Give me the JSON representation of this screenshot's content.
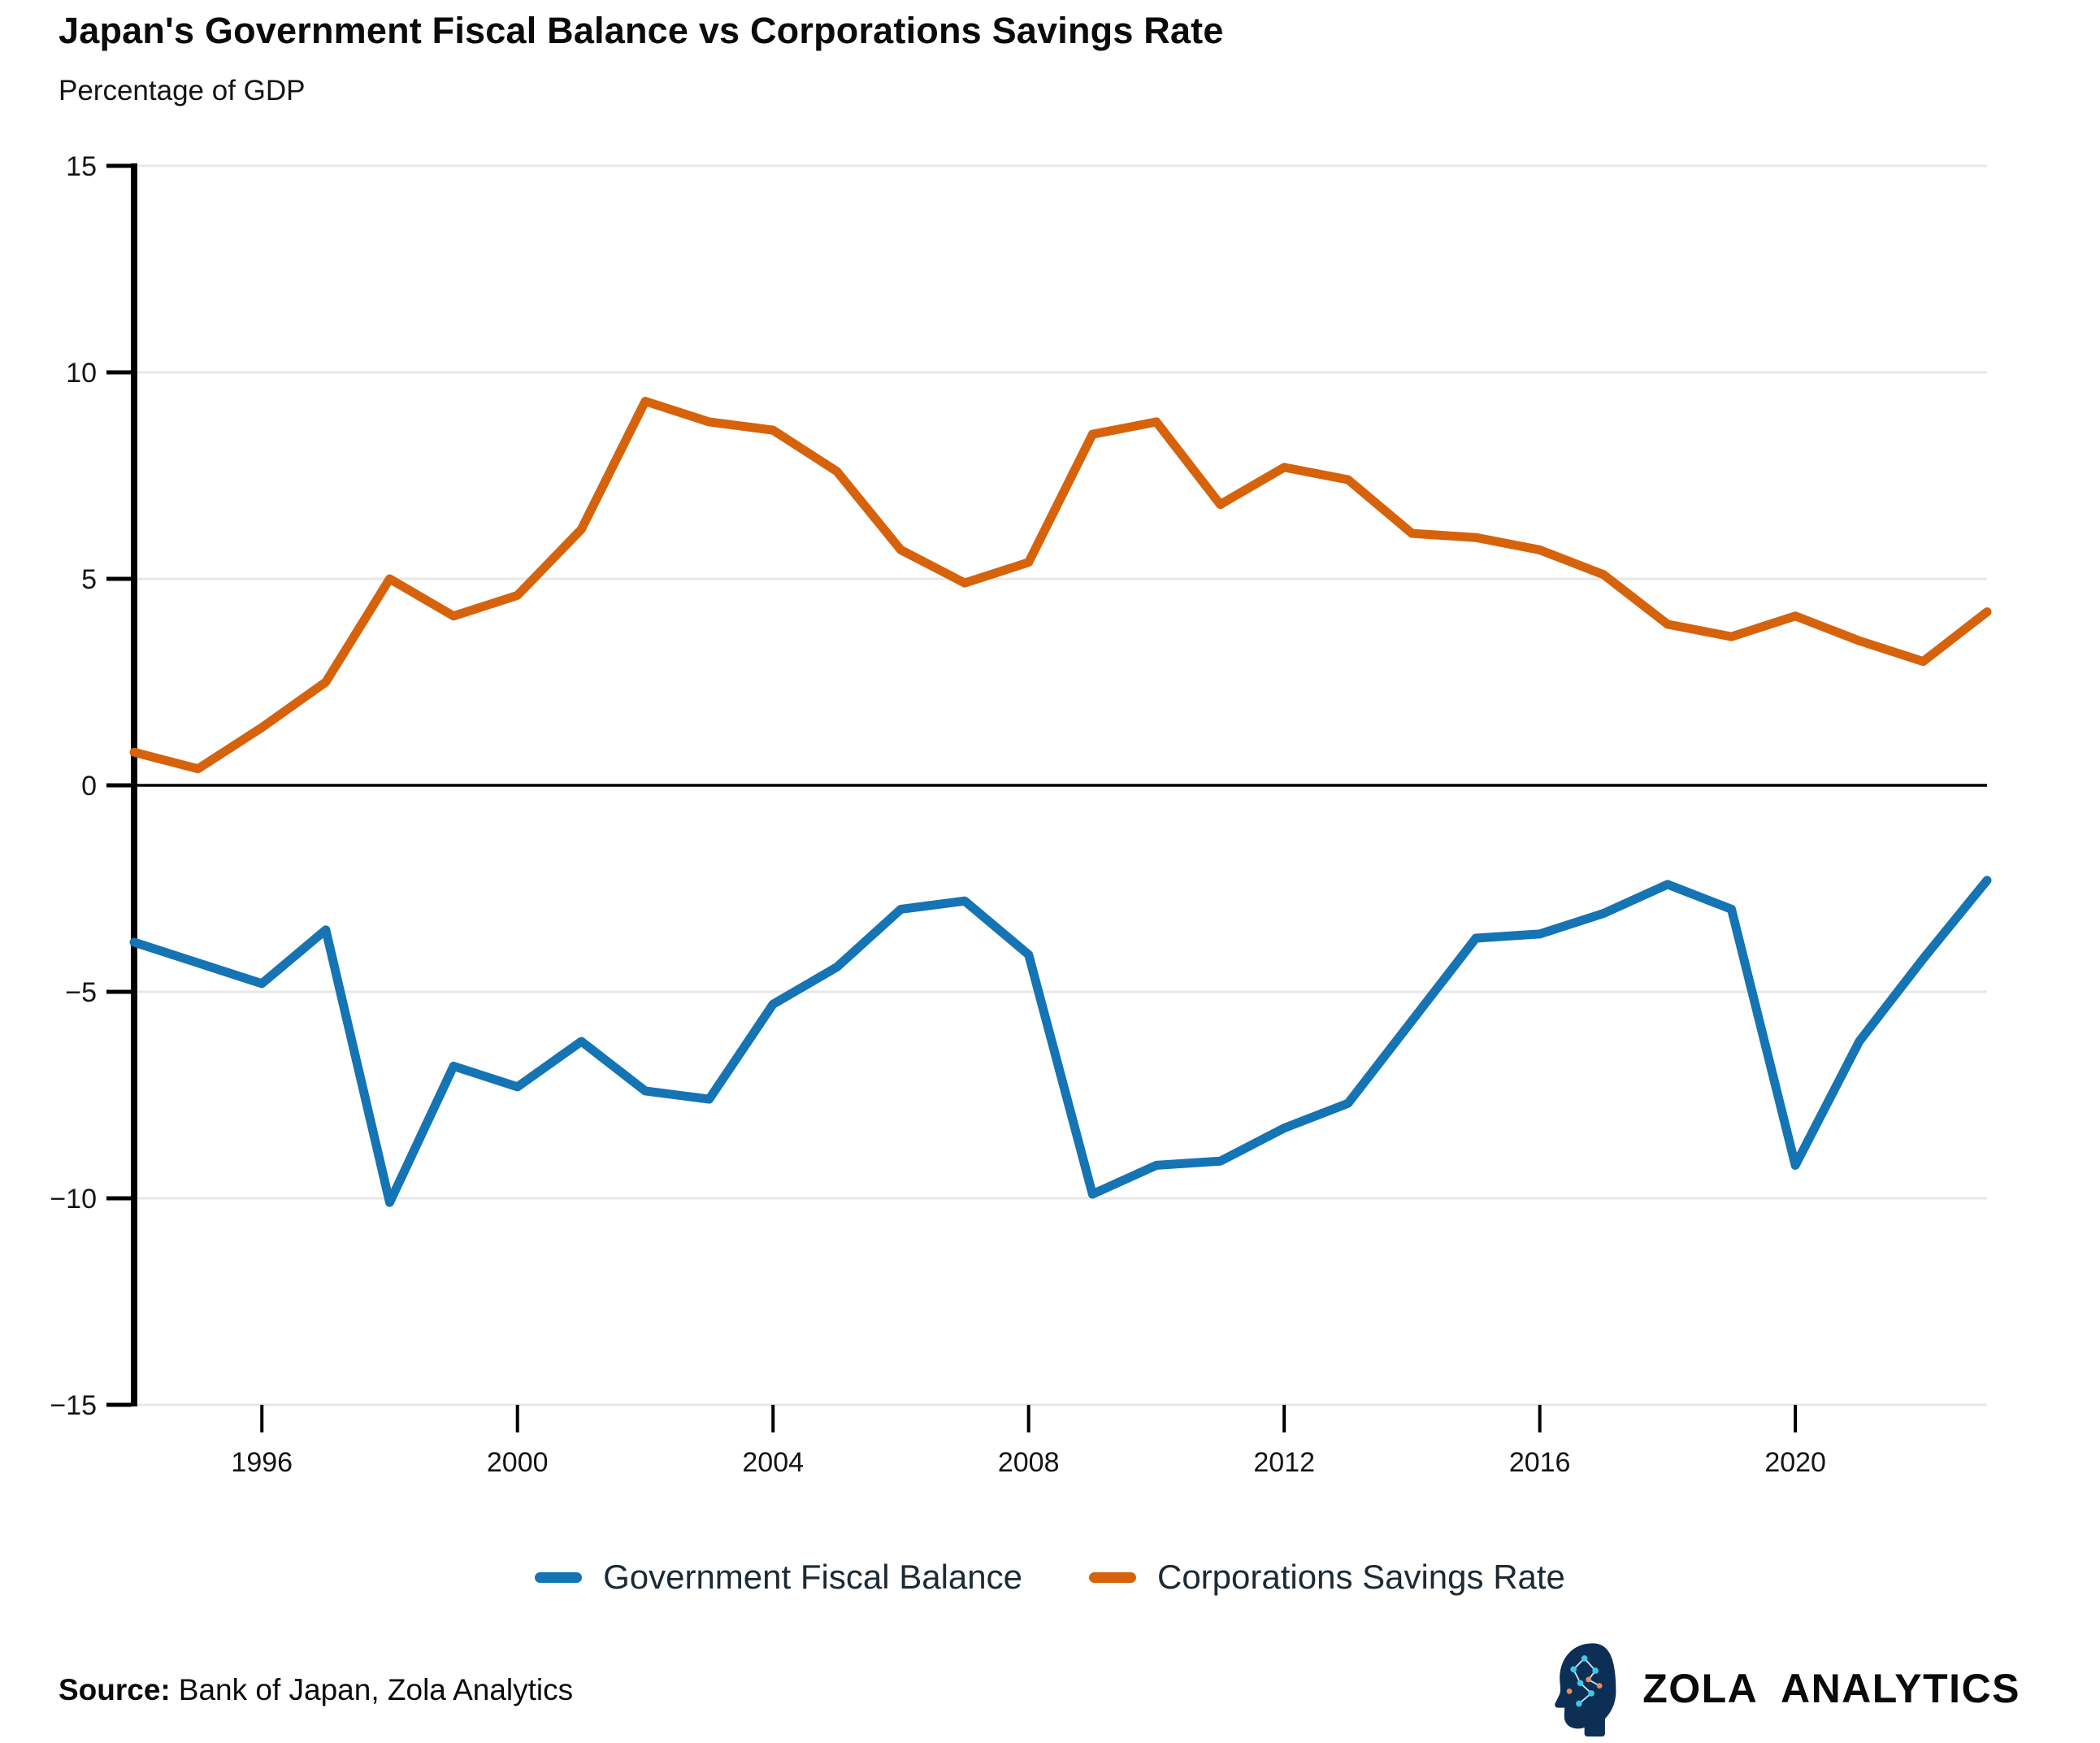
{
  "header": {
    "title": "Japan's Government Fiscal Balance vs Corporations Savings Rate",
    "subtitle": "Percentage of GDP"
  },
  "legend": {
    "items": [
      {
        "label": "Government Fiscal Balance",
        "color": "#1474B4"
      },
      {
        "label": "Corporations Savings Rate",
        "color": "#D6630C"
      }
    ]
  },
  "footer": {
    "source_label": "Source:",
    "source_text": "Bank of Japan, Zola Analytics",
    "logo_text": "ZOLA ANALYTICS"
  },
  "colors": {
    "gov_balance_line": "#1474B4",
    "corp_savings_line": "#D6630C",
    "gridline": "#e7e7e7",
    "zero_line": "#000000",
    "axis_spine": "#000000",
    "tick_text": "#141414",
    "legend_text": "#1c2a35",
    "logo_navy": "#0e2f55",
    "logo_cyan": "#3ec9ea",
    "logo_orange": "#ef8a5c"
  },
  "chart_data": {
    "type": "line",
    "title": "Japan's Government Fiscal Balance vs Corporations Savings Rate",
    "ylabel": "Percentage of GDP",
    "xlabel": "",
    "grid": "horizontal",
    "zero_line": true,
    "legend_position": "bottom",
    "xlim": [
      1994,
      2023
    ],
    "ylim": [
      -15,
      15
    ],
    "xtick_values": [
      1996,
      2000,
      2004,
      2008,
      2012,
      2016,
      2020
    ],
    "xtick_labels": [
      "1996",
      "2000",
      "2004",
      "2008",
      "2012",
      "2016",
      "2020"
    ],
    "ytick_values": [
      15,
      10,
      5,
      0,
      -5,
      -10,
      -15
    ],
    "ytick_labels": [
      "15",
      "10",
      "5",
      "0",
      "−5",
      "−10",
      "−15"
    ],
    "x": [
      1994,
      1995,
      1996,
      1997,
      1998,
      1999,
      2000,
      2001,
      2002,
      2003,
      2004,
      2005,
      2006,
      2007,
      2008,
      2009,
      2010,
      2011,
      2012,
      2013,
      2014,
      2015,
      2016,
      2017,
      2018,
      2019,
      2020,
      2021,
      2022,
      2023
    ],
    "series": [
      {
        "name": "Government Fiscal Balance",
        "color": "#1474B4",
        "values": [
          -3.8,
          -4.3,
          -4.8,
          -3.5,
          -10.1,
          -6.8,
          -7.3,
          -6.2,
          -7.4,
          -7.6,
          -5.3,
          -4.4,
          -3.0,
          -2.8,
          -4.1,
          -9.9,
          -9.2,
          -9.1,
          -8.3,
          -7.7,
          -5.7,
          -3.7,
          -3.6,
          -3.1,
          -2.4,
          -3.0,
          -9.2,
          -6.2,
          -4.2,
          -2.3
        ]
      },
      {
        "name": "Corporations Savings Rate",
        "color": "#D6630C",
        "values": [
          0.8,
          0.4,
          1.4,
          2.5,
          5.0,
          4.1,
          4.6,
          6.2,
          9.3,
          8.8,
          8.6,
          7.6,
          5.7,
          4.9,
          5.4,
          8.5,
          8.8,
          6.8,
          7.7,
          7.4,
          6.1,
          6.0,
          5.7,
          5.1,
          3.9,
          3.6,
          4.1,
          3.5,
          3.0,
          4.2
        ]
      }
    ]
  }
}
